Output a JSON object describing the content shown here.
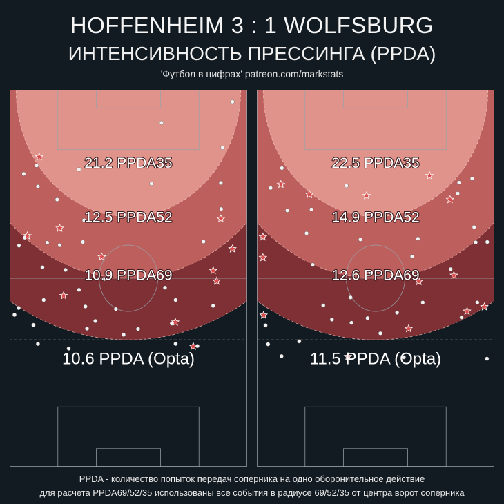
{
  "header": {
    "title": "HOFFENHEIM  3 : 1  WOLFSBURG",
    "subtitle": "ИНТЕНСИВНОСТЬ ПРЕССИНГА (PPDA)",
    "credit": "'Футбол в цифрах' patreon.com/markstats"
  },
  "footnote": {
    "line1": "PPDA - количество попыток передач соперника на одно оборонительное действие",
    "line2": "для расчета PPDA69/52/35 использованы все события в радиусе 69/52/35 от центра ворот соперника"
  },
  "colors": {
    "background": "#131b22",
    "zone35": "#e0938a",
    "zone52": "#bd5f5d",
    "zone69": "#7e3034",
    "pitch_lines": "#9aa3aa",
    "dot": "#f2f2f2",
    "star": "#d94c4c"
  },
  "chart_data": [
    {
      "type": "scatter",
      "team": "HOFFENHEIM",
      "ppda_opta_label": "10.6 PPDA (Opta)",
      "zones": [
        {
          "radius": 35,
          "label": "21.2 PPDA35",
          "value": 21.2
        },
        {
          "radius": 52,
          "label": "12.5 PPDA52",
          "value": 12.5
        },
        {
          "radius": 69,
          "label": "10.9 PPDA69",
          "value": 10.9
        }
      ],
      "dots": [
        [
          69.4,
          3.3
        ],
        [
          47.3,
          9.1
        ],
        [
          44.2,
          25.9
        ],
        [
          23.2,
          36.0
        ],
        [
          15.6,
          42.9
        ],
        [
          10.2,
          49.0
        ],
        [
          4.7,
          40.8
        ],
        [
          11.7,
          42.2
        ],
        [
          2.9,
          43.0
        ],
        [
          4.4,
          23.2
        ],
        [
          8.4,
          20.9
        ],
        [
          8.8,
          26.7
        ],
        [
          14.8,
          30.3
        ],
        [
          21.6,
          22.0
        ],
        [
          22.8,
          42.0
        ],
        [
          17.4,
          49.7
        ],
        [
          29.4,
          52.2
        ],
        [
          33.1,
          60.5
        ],
        [
          40.0,
          66.0
        ],
        [
          35.5,
          67.6
        ],
        [
          21.6,
          55.2
        ],
        [
          23.6,
          59.8
        ],
        [
          24.1,
          65.9
        ],
        [
          10.6,
          58.0
        ],
        [
          7.4,
          64.9
        ],
        [
          8.8,
          70.1
        ],
        [
          18.4,
          71.4
        ],
        [
          2.8,
          60.2
        ],
        [
          1.5,
          62.1
        ],
        [
          26.7,
          63.8
        ],
        [
          48.4,
          54.6
        ],
        [
          51.7,
          58.0
        ],
        [
          63.4,
          59.6
        ],
        [
          51.7,
          70.1
        ],
        [
          60.4,
          41.9
        ],
        [
          65.9,
          32.9
        ],
        [
          65.8,
          25.7
        ],
        [
          66.3,
          16.0
        ],
        [
          50.5,
          64.5
        ],
        [
          58.5,
          70.7
        ]
      ],
      "stars": [
        [
          9.2,
          18.5
        ],
        [
          5.5,
          40.3
        ],
        [
          15.6,
          38.2
        ],
        [
          16.8,
          56.8
        ],
        [
          28.7,
          46.1
        ],
        [
          51.6,
          64.1
        ],
        [
          57.2,
          70.8
        ],
        [
          65.8,
          35.6
        ],
        [
          69.4,
          43.9
        ],
        [
          63.4,
          49.9
        ],
        [
          64.5,
          52.8
        ]
      ]
    },
    {
      "type": "scatter",
      "team": "WOLFSBURG",
      "ppda_opta_label": "11.5 PPDA (Opta)",
      "zones": [
        {
          "radius": 35,
          "label": "22.5 PPDA35",
          "value": 22.5
        },
        {
          "radius": 52,
          "label": "14.9 PPDA52",
          "value": 14.9
        },
        {
          "radius": 69,
          "label": "12.6 PPDA69",
          "value": 12.6
        }
      ],
      "dots": [
        [
          7.8,
          21.6
        ],
        [
          4.3,
          27.1
        ],
        [
          9.5,
          33.3
        ],
        [
          15.5,
          39.6
        ],
        [
          17.0,
          33.0
        ],
        [
          32.3,
          41.3
        ],
        [
          31.2,
          35.6
        ],
        [
          29.2,
          57.3
        ],
        [
          29.5,
          64.3
        ],
        [
          20.7,
          59.5
        ],
        [
          17.4,
          48.3
        ],
        [
          34.5,
          63.0
        ],
        [
          51.7,
          58.7
        ],
        [
          48.4,
          46.0
        ],
        [
          50.2,
          41.1
        ],
        [
          62.6,
          28.6
        ],
        [
          63.0,
          25.6
        ],
        [
          67.1,
          24.5
        ],
        [
          67.7,
          37.9
        ],
        [
          68.2,
          42.1
        ],
        [
          60.4,
          49.5
        ],
        [
          63.8,
          62.8
        ],
        [
          71.8,
          42.0
        ],
        [
          43.7,
          61.5
        ],
        [
          68.7,
          58.7
        ],
        [
          23.4,
          63.4
        ],
        [
          2.7,
          65.0
        ],
        [
          3.5,
          70.2
        ],
        [
          7.7,
          73.5
        ],
        [
          71.7,
          74.2
        ],
        [
          13.2,
          69.4
        ],
        [
          27.9,
          26.5
        ],
        [
          38.5,
          67.2
        ],
        [
          35.3,
          50.4
        ],
        [
          45.8,
          73.8
        ]
      ],
      "stars": [
        [
          7.5,
          26.1
        ],
        [
          1.9,
          40.6
        ],
        [
          1.9,
          46.3
        ],
        [
          2.1,
          62.2
        ],
        [
          16.4,
          28.9
        ],
        [
          34.2,
          29.2
        ],
        [
          53.8,
          23.7
        ],
        [
          60.2,
          30.3
        ],
        [
          50.5,
          52.9
        ],
        [
          47.3,
          65.9
        ],
        [
          61.4,
          51.2
        ],
        [
          65.5,
          61.1
        ],
        [
          70.9,
          59.9
        ],
        [
          28.4,
          73.6
        ]
      ]
    }
  ]
}
